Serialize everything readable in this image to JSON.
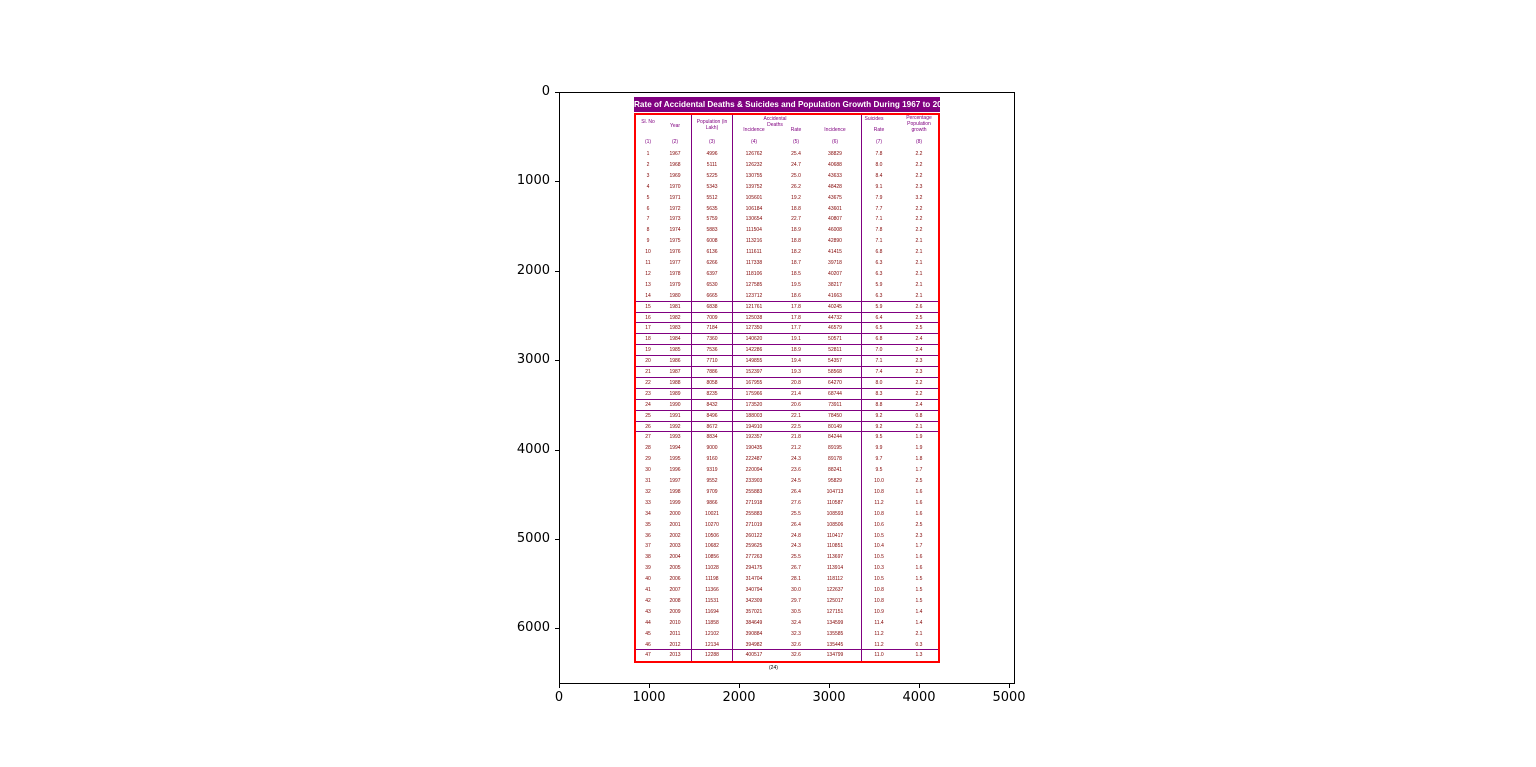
{
  "chart_data": {
    "type": "table",
    "title": "Rate of Accidental Deaths & Suicides and Population Growth During 1967 to 2013",
    "x_ticks": [
      "0",
      "1000",
      "2000",
      "3000",
      "4000",
      "5000"
    ],
    "y_ticks": [
      "0",
      "1000",
      "2000",
      "3000",
      "4000",
      "5000",
      "6000"
    ],
    "xlim": [
      0,
      5070
    ],
    "ylim": [
      6620,
      0
    ],
    "headers": {
      "sl": "Sl. No",
      "year": "Year",
      "population": "Population (in Lakh)",
      "accidental": "Accidental Deaths",
      "suicides": "Suicides",
      "incidence": "Incidence",
      "rate": "Rate",
      "growth": "Percentage Population growth"
    },
    "column_numbers": [
      "(1)",
      "(2)",
      "(3)",
      "(4)",
      "(5)",
      "(6)",
      "(7)",
      "(8)"
    ],
    "footer": "(24)",
    "rows": [
      [
        "1",
        "1967",
        "4996",
        "126762",
        "25.4",
        "38829",
        "7.8",
        "2.2"
      ],
      [
        "2",
        "1968",
        "5111",
        "126232",
        "24.7",
        "40688",
        "8.0",
        "2.2"
      ],
      [
        "3",
        "1969",
        "5225",
        "130755",
        "25.0",
        "43633",
        "8.4",
        "2.2"
      ],
      [
        "4",
        "1970",
        "5343",
        "139752",
        "26.2",
        "48428",
        "9.1",
        "2.3"
      ],
      [
        "5",
        "1971",
        "5512",
        "105601",
        "19.2",
        "43675",
        "7.9",
        "3.2"
      ],
      [
        "6",
        "1972",
        "5635",
        "106184",
        "18.8",
        "43601",
        "7.7",
        "2.2"
      ],
      [
        "7",
        "1973",
        "5759",
        "130654",
        "22.7",
        "40807",
        "7.1",
        "2.2"
      ],
      [
        "8",
        "1974",
        "5883",
        "111504",
        "18.9",
        "46008",
        "7.8",
        "2.2"
      ],
      [
        "9",
        "1975",
        "6008",
        "113216",
        "18.8",
        "42890",
        "7.1",
        "2.1"
      ],
      [
        "10",
        "1976",
        "6136",
        "111611",
        "18.2",
        "41415",
        "6.8",
        "2.1"
      ],
      [
        "11",
        "1977",
        "6266",
        "117338",
        "18.7",
        "39718",
        "6.3",
        "2.1"
      ],
      [
        "12",
        "1978",
        "6397",
        "118106",
        "18.5",
        "40207",
        "6.3",
        "2.1"
      ],
      [
        "13",
        "1979",
        "6530",
        "127585",
        "19.5",
        "38217",
        "5.9",
        "2.1"
      ],
      [
        "14",
        "1980",
        "6665",
        "123712",
        "18.6",
        "41663",
        "6.3",
        "2.1"
      ],
      [
        "15",
        "1981",
        "6838",
        "121761",
        "17.8",
        "40245",
        "5.9",
        "2.6"
      ],
      [
        "16",
        "1982",
        "7009",
        "125038",
        "17.8",
        "44732",
        "6.4",
        "2.5"
      ],
      [
        "17",
        "1983",
        "7184",
        "127350",
        "17.7",
        "46579",
        "6.5",
        "2.5"
      ],
      [
        "18",
        "1984",
        "7360",
        "140620",
        "19.1",
        "50571",
        "6.8",
        "2.4"
      ],
      [
        "19",
        "1985",
        "7536",
        "142286",
        "18.9",
        "52811",
        "7.0",
        "2.4"
      ],
      [
        "20",
        "1986",
        "7710",
        "149855",
        "19.4",
        "54357",
        "7.1",
        "2.3"
      ],
      [
        "21",
        "1987",
        "7886",
        "152397",
        "19.3",
        "58568",
        "7.4",
        "2.3"
      ],
      [
        "22",
        "1988",
        "8058",
        "167955",
        "20.8",
        "64270",
        "8.0",
        "2.2"
      ],
      [
        "23",
        "1989",
        "8235",
        "175966",
        "21.4",
        "68744",
        "8.3",
        "2.2"
      ],
      [
        "24",
        "1990",
        "8432",
        "173520",
        "20.6",
        "73911",
        "8.8",
        "2.4"
      ],
      [
        "25",
        "1991",
        "8496",
        "188003",
        "22.1",
        "78450",
        "9.2",
        "0.8"
      ],
      [
        "26",
        "1992",
        "8672",
        "194910",
        "22.5",
        "80149",
        "9.2",
        "2.1"
      ],
      [
        "27",
        "1993",
        "8834",
        "192357",
        "21.8",
        "84244",
        "9.5",
        "1.9"
      ],
      [
        "28",
        "1994",
        "9000",
        "190435",
        "21.2",
        "89195",
        "9.9",
        "1.9"
      ],
      [
        "29",
        "1995",
        "9160",
        "222487",
        "24.3",
        "89178",
        "9.7",
        "1.8"
      ],
      [
        "30",
        "1996",
        "9319",
        "220094",
        "23.6",
        "88241",
        "9.5",
        "1.7"
      ],
      [
        "31",
        "1997",
        "9552",
        "233903",
        "24.5",
        "95829",
        "10.0",
        "2.5"
      ],
      [
        "32",
        "1998",
        "9709",
        "255883",
        "26.4",
        "104713",
        "10.8",
        "1.6"
      ],
      [
        "33",
        "1999",
        "9866",
        "271918",
        "27.6",
        "110587",
        "11.2",
        "1.6"
      ],
      [
        "34",
        "2000",
        "10021",
        "255883",
        "25.5",
        "108593",
        "10.8",
        "1.6"
      ],
      [
        "35",
        "2001",
        "10270",
        "271019",
        "26.4",
        "108506",
        "10.6",
        "2.5"
      ],
      [
        "36",
        "2002",
        "10506",
        "260122",
        "24.8",
        "110417",
        "10.5",
        "2.3"
      ],
      [
        "37",
        "2003",
        "10682",
        "259625",
        "24.3",
        "110851",
        "10.4",
        "1.7"
      ],
      [
        "38",
        "2004",
        "10856",
        "277263",
        "25.5",
        "113697",
        "10.5",
        "1.6"
      ],
      [
        "39",
        "2005",
        "11028",
        "294175",
        "26.7",
        "113914",
        "10.3",
        "1.6"
      ],
      [
        "40",
        "2006",
        "11198",
        "314704",
        "28.1",
        "118112",
        "10.5",
        "1.5"
      ],
      [
        "41",
        "2007",
        "11366",
        "340794",
        "30.0",
        "122637",
        "10.8",
        "1.5"
      ],
      [
        "42",
        "2008",
        "11531",
        "342309",
        "29.7",
        "125017",
        "10.8",
        "1.5"
      ],
      [
        "43",
        "2009",
        "11694",
        "357021",
        "30.5",
        "127151",
        "10.9",
        "1.4"
      ],
      [
        "44",
        "2010",
        "11858",
        "384649",
        "32.4",
        "134599",
        "11.4",
        "1.4"
      ],
      [
        "45",
        "2011",
        "12102",
        "390884",
        "32.3",
        "135585",
        "11.2",
        "2.1"
      ],
      [
        "46",
        "2012",
        "12134",
        "394982",
        "32.6",
        "135445",
        "11.2",
        "0.3"
      ],
      [
        "47",
        "2013",
        "12288",
        "400517",
        "32.6",
        "134799",
        "11.0",
        "1.3"
      ]
    ]
  },
  "colors": {
    "title_bar": "#800080",
    "border": "#ff0000",
    "grid": "#800080",
    "text": "#800000"
  }
}
